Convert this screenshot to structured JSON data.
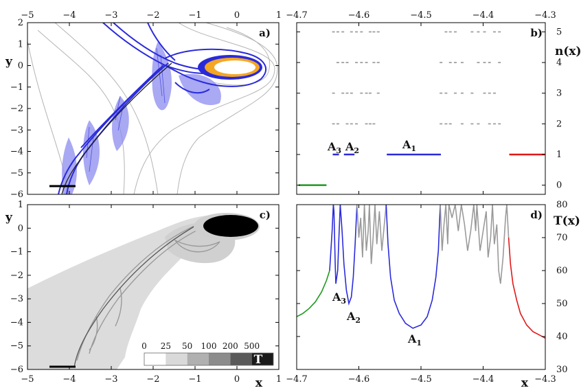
{
  "chart_data": [
    {
      "panel": "a)",
      "type": "scatter",
      "xlim": [
        -5,
        1
      ],
      "ylim": [
        -6,
        2
      ],
      "xticks": [
        -5,
        -4,
        -3,
        -2,
        -1,
        0,
        1
      ],
      "yticks": [
        2,
        1,
        0,
        -1,
        -2,
        -3,
        -4,
        -5,
        -6
      ],
      "ylabel": "y",
      "colors": {
        "manifold": "#2a2adb",
        "basin": "#8c8cf0",
        "core": "#f5a623",
        "contours": "#b4b4b4"
      }
    },
    {
      "panel": "b)",
      "type": "scatter",
      "xlim": [
        -4.7,
        -4.3
      ],
      "ylim": [
        -0.3,
        5.3
      ],
      "xticks": [
        -4.7,
        -4.6,
        -4.5,
        -4.4,
        -4.3
      ],
      "yticks": [
        0,
        1,
        2,
        3,
        4,
        5
      ],
      "ylabel": "n(x)",
      "intervals": [
        {
          "label": "A1",
          "x": [
            -4.555,
            -4.468
          ],
          "n": 1,
          "color": "#2a2adb"
        },
        {
          "label": "A2",
          "x": [
            -4.624,
            -4.607
          ],
          "n": 1,
          "color": "#2a2adb"
        },
        {
          "label": "A3",
          "x": [
            -4.642,
            -4.632
          ],
          "n": 1,
          "color": "#2a2adb"
        },
        {
          "label": "",
          "x": [
            -4.697,
            -4.652
          ],
          "n": 0,
          "color": "#1f9a1f"
        },
        {
          "label": "",
          "x": [
            -4.358,
            -4.3
          ],
          "n": 1,
          "color": "#e01818"
        }
      ]
    },
    {
      "panel": "c)",
      "type": "heatmap",
      "xlim": [
        -5,
        1
      ],
      "ylim": [
        -6,
        1
      ],
      "xticks": [
        -5,
        -4,
        -3,
        -2,
        -1,
        0,
        1
      ],
      "yticks": [
        1,
        0,
        -1,
        -2,
        -3,
        -4,
        -5,
        -6
      ],
      "xlabel": "x",
      "ylabel": "y",
      "colorbar": {
        "ticks": [
          "0",
          "25",
          "50",
          "100",
          "200",
          "500"
        ],
        "label": "T",
        "colors": [
          "#ffffff",
          "#d9d9d9",
          "#b0b0b0",
          "#8c8c8c",
          "#5a5a5a",
          "#1a1a1a"
        ]
      }
    },
    {
      "panel": "d)",
      "type": "line",
      "xlim": [
        -4.7,
        -4.3
      ],
      "ylim": [
        30,
        80
      ],
      "xticks": [
        -4.7,
        -4.6,
        -4.5,
        -4.4,
        -4.3
      ],
      "yticks": [
        30,
        40,
        50,
        60,
        70,
        80
      ],
      "xlabel": "x",
      "ylabel": "T(x)",
      "minima": [
        {
          "label": "A1",
          "x": -4.513,
          "T": 42.5
        },
        {
          "label": "A2",
          "x": -4.616,
          "T": 50
        },
        {
          "label": "A3",
          "x": -4.637,
          "T": 56
        }
      ],
      "series": [
        {
          "color": "#1f9a1f",
          "points": [
            [
              -4.7,
              46
            ],
            [
              -4.69,
              47
            ],
            [
              -4.68,
              48.5
            ],
            [
              -4.67,
              50.5
            ],
            [
              -4.66,
              53.5
            ],
            [
              -4.652,
              57
            ],
            [
              -4.647,
              60
            ]
          ]
        },
        {
          "color": "#2a2adb",
          "points": [
            [
              -4.647,
              60
            ],
            [
              -4.645,
              66
            ],
            [
              -4.643,
              72
            ],
            [
              -4.641,
              80
            ],
            [
              -4.64,
              78
            ],
            [
              -4.638,
              62
            ],
            [
              -4.637,
              56
            ],
            [
              -4.634,
              60
            ],
            [
              -4.632,
              70
            ],
            [
              -4.63,
              80
            ]
          ]
        },
        {
          "color": "#2a2adb",
          "points": [
            [
              -4.63,
              80
            ],
            [
              -4.627,
              72
            ],
            [
              -4.624,
              62
            ],
            [
              -4.62,
              54
            ],
            [
              -4.616,
              50
            ],
            [
              -4.612,
              52
            ],
            [
              -4.609,
              58
            ],
            [
              -4.606,
              68
            ],
            [
              -4.603,
              80
            ]
          ]
        },
        {
          "color": "#9a9a9a",
          "points": [
            [
              -4.603,
              80
            ],
            [
              -4.6,
              70
            ],
            [
              -4.597,
              76
            ],
            [
              -4.594,
              64
            ],
            [
              -4.591,
              80
            ],
            [
              -4.588,
              66
            ],
            [
              -4.585,
              72
            ],
            [
              -4.583,
              80
            ],
            [
              -4.58,
              62
            ],
            [
              -4.577,
              70
            ],
            [
              -4.574,
              80
            ],
            [
              -4.571,
              68
            ],
            [
              -4.567,
              78
            ],
            [
              -4.563,
              66
            ],
            [
              -4.559,
              74
            ],
            [
              -4.556,
              80
            ]
          ]
        },
        {
          "color": "#2a2adb",
          "points": [
            [
              -4.556,
              80
            ],
            [
              -4.553,
              68
            ],
            [
              -4.549,
              58
            ],
            [
              -4.543,
              51
            ],
            [
              -4.535,
              47
            ],
            [
              -4.525,
              44
            ],
            [
              -4.513,
              42.5
            ],
            [
              -4.5,
              43.5
            ],
            [
              -4.49,
              46
            ],
            [
              -4.482,
              51
            ],
            [
              -4.476,
              58
            ],
            [
              -4.472,
              66
            ],
            [
              -4.469,
              80
            ]
          ]
        },
        {
          "color": "#9a9a9a",
          "points": [
            [
              -4.469,
              80
            ],
            [
              -4.466,
              66
            ],
            [
              -4.463,
              74
            ],
            [
              -4.46,
              80
            ],
            [
              -4.457,
              68
            ],
            [
              -4.455,
              80
            ],
            [
              -4.45,
              76
            ],
            [
              -4.445,
              80
            ],
            [
              -4.44,
              72
            ],
            [
              -4.435,
              80
            ],
            [
              -4.43,
              74
            ],
            [
              -4.425,
              66
            ],
            [
              -4.42,
              72
            ],
            [
              -4.415,
              80
            ],
            [
              -4.412,
              72
            ],
            [
              -4.41,
              80
            ],
            [
              -4.405,
              66
            ],
            [
              -4.4,
              72
            ],
            [
              -4.395,
              78
            ],
            [
              -4.392,
              64
            ],
            [
              -4.388,
              70
            ],
            [
              -4.385,
              80
            ],
            [
              -4.382,
              68
            ],
            [
              -4.378,
              74
            ],
            [
              -4.375,
              60
            ],
            [
              -4.372,
              56
            ],
            [
              -4.368,
              64
            ],
            [
              -4.364,
              76
            ],
            [
              -4.362,
              80
            ],
            [
              -4.359,
              70
            ]
          ]
        },
        {
          "color": "#e01818",
          "points": [
            [
              -4.359,
              70
            ],
            [
              -4.356,
              62
            ],
            [
              -4.352,
              56
            ],
            [
              -4.346,
              51
            ],
            [
              -4.34,
              47
            ],
            [
              -4.33,
              43.5
            ],
            [
              -4.32,
              41.5
            ],
            [
              -4.31,
              40.5
            ],
            [
              -4.3,
              39.5
            ]
          ]
        }
      ]
    }
  ]
}
